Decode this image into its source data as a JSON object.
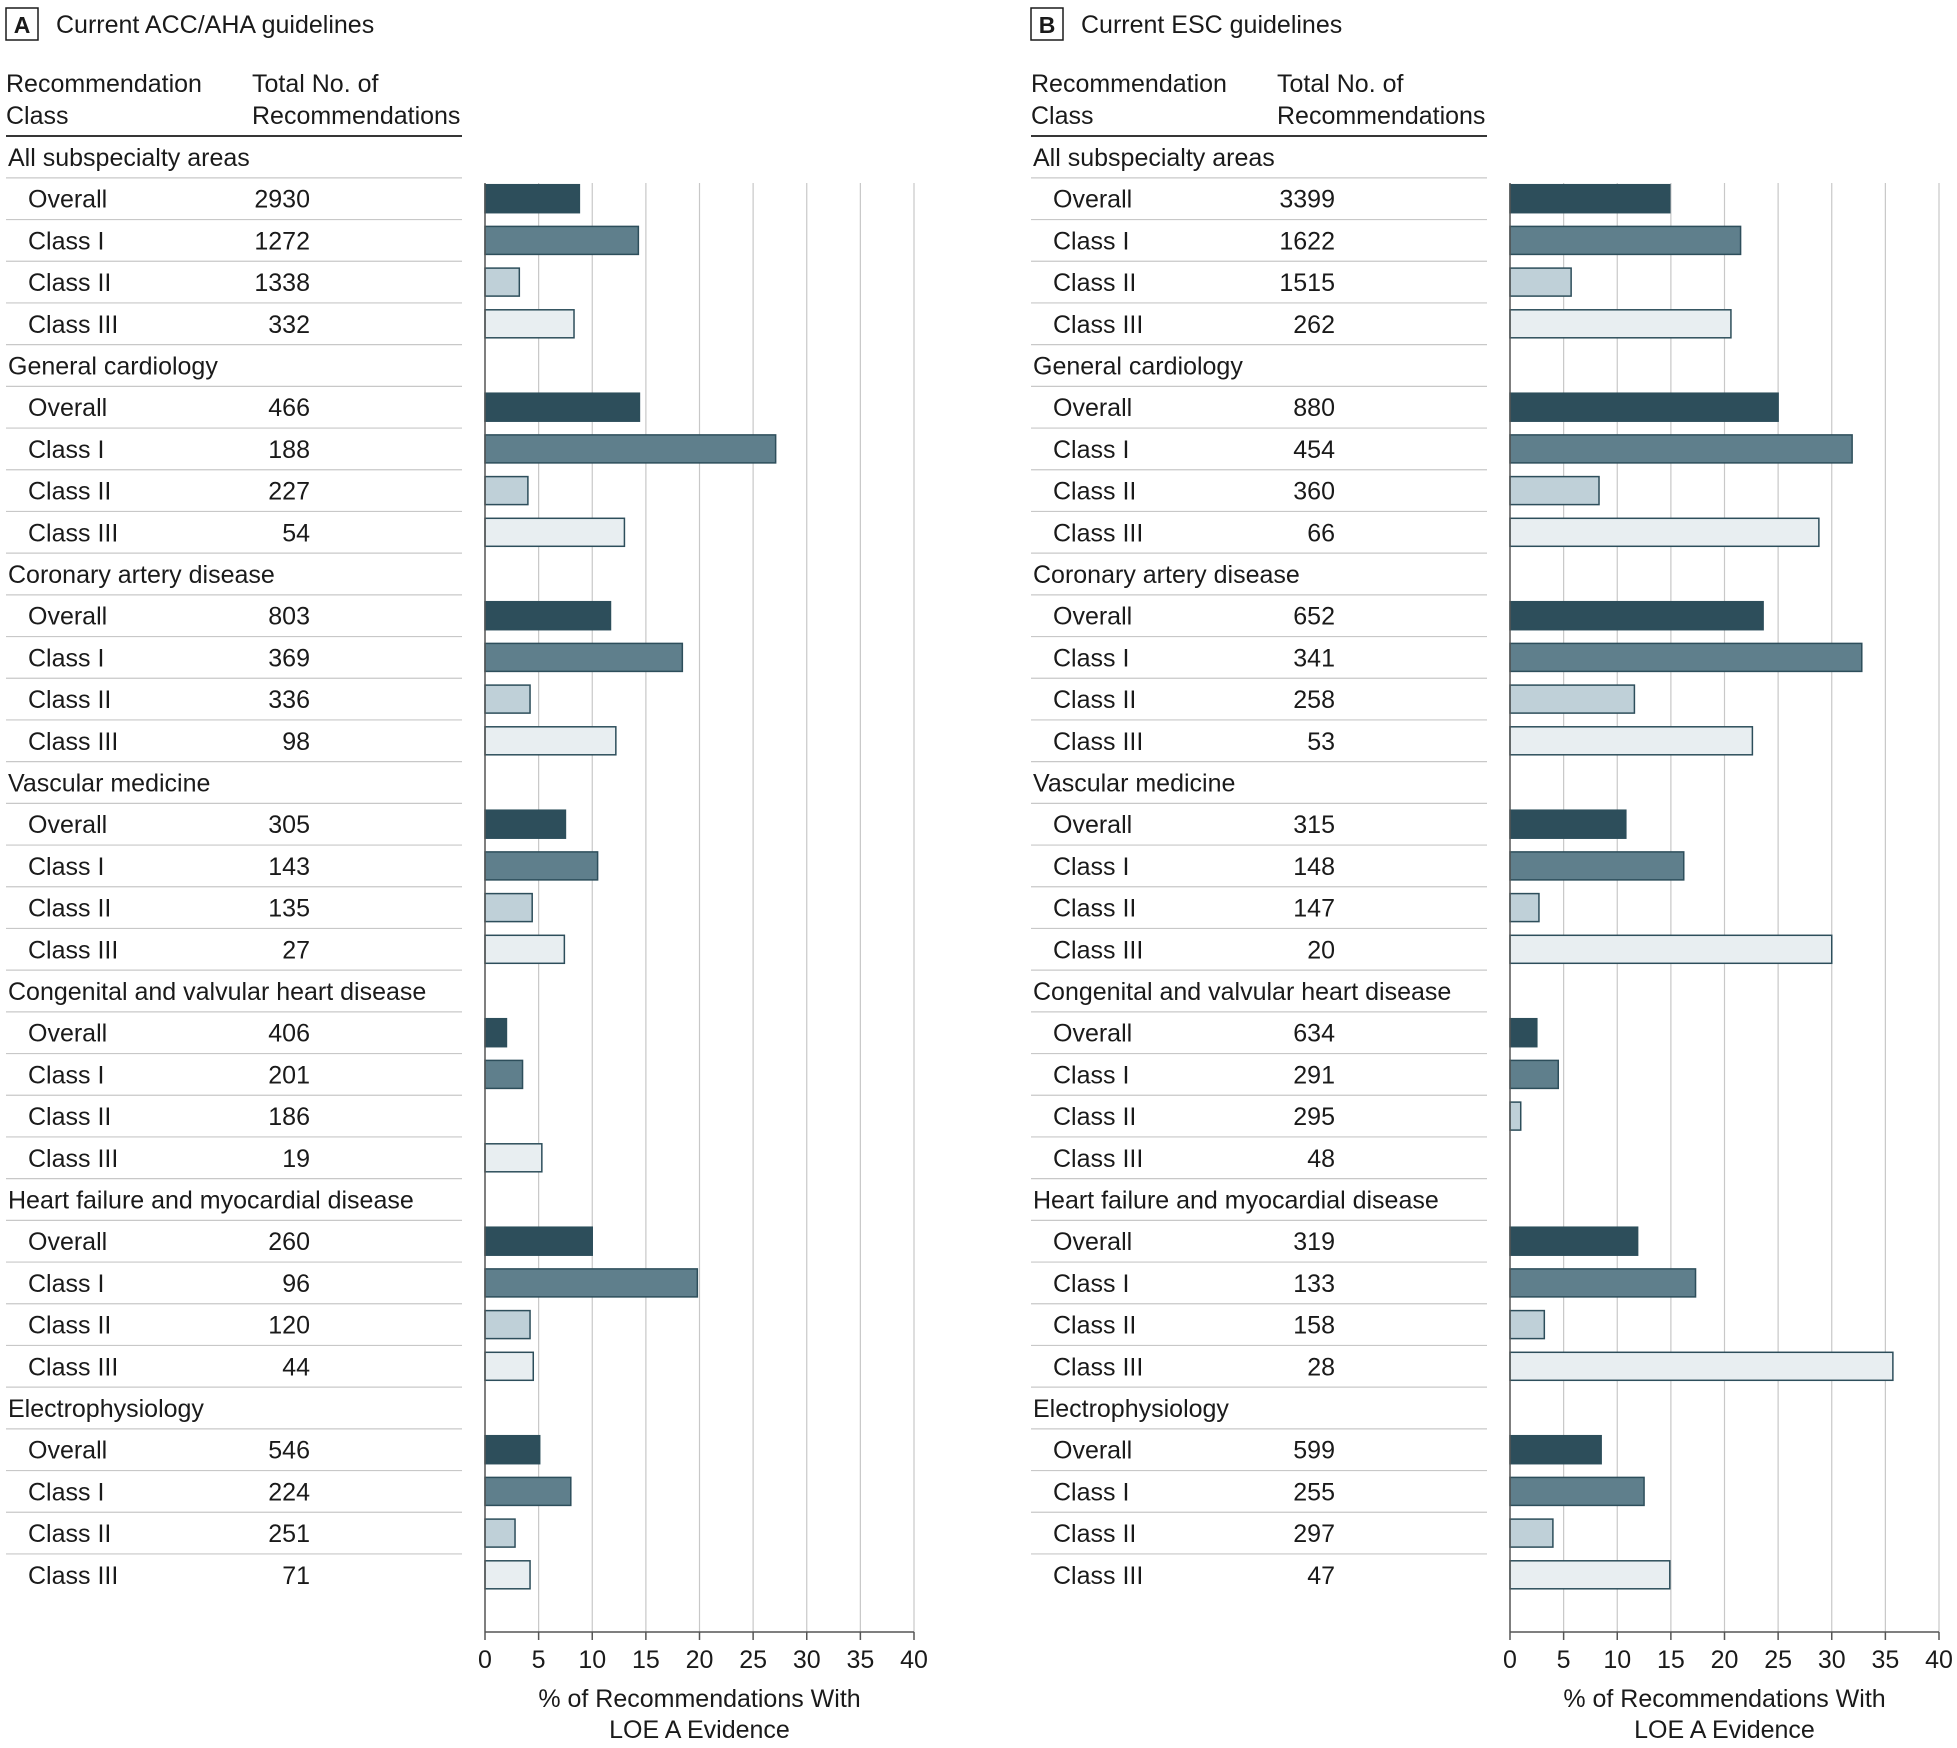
{
  "chart_data": [
    {
      "type": "bar",
      "panel_letter": "A",
      "title": "Current ACC/AHA guidelines",
      "col_headers": {
        "class_line1": "Recommendation",
        "class_line2": "Class",
        "total_line1": "Total No. of",
        "total_line2": "Recommendations"
      },
      "xlabel": [
        "% of Recommendations With",
        "LOE A Evidence"
      ],
      "xlim": [
        0,
        40
      ],
      "xticks": [
        0,
        5,
        10,
        15,
        20,
        25,
        30,
        35,
        40
      ],
      "grid": true,
      "groups": [
        {
          "name": "All subspecialty areas",
          "rows": [
            {
              "label": "Overall",
              "total": "2930",
              "value": 8.8
            },
            {
              "label": "Class I",
              "total": "1272",
              "value": 14.3
            },
            {
              "label": "Class II",
              "total": "1338",
              "value": 3.2
            },
            {
              "label": "Class III",
              "total": "332",
              "value": 8.3
            }
          ]
        },
        {
          "name": "General cardiology",
          "rows": [
            {
              "label": "Overall",
              "total": "466",
              "value": 14.4
            },
            {
              "label": "Class I",
              "total": "188",
              "value": 27.1
            },
            {
              "label": "Class II",
              "total": "227",
              "value": 4.0
            },
            {
              "label": "Class III",
              "total": "54",
              "value": 13.0
            }
          ]
        },
        {
          "name": "Coronary artery disease",
          "rows": [
            {
              "label": "Overall",
              "total": "803",
              "value": 11.7
            },
            {
              "label": "Class I",
              "total": "369",
              "value": 18.4
            },
            {
              "label": "Class II",
              "total": "336",
              "value": 4.2
            },
            {
              "label": "Class III",
              "total": "98",
              "value": 12.2
            }
          ]
        },
        {
          "name": "Vascular medicine",
          "rows": [
            {
              "label": "Overall",
              "total": "305",
              "value": 7.5
            },
            {
              "label": "Class I",
              "total": "143",
              "value": 10.5
            },
            {
              "label": "Class II",
              "total": "135",
              "value": 4.4
            },
            {
              "label": "Class III",
              "total": "27",
              "value": 7.4
            }
          ]
        },
        {
          "name": "Congenital and valvular heart disease",
          "rows": [
            {
              "label": "Overall",
              "total": "406",
              "value": 2.0
            },
            {
              "label": "Class I",
              "total": "201",
              "value": 3.5
            },
            {
              "label": "Class II",
              "total": "186",
              "value": 0
            },
            {
              "label": "Class III",
              "total": "19",
              "value": 5.3
            }
          ]
        },
        {
          "name": "Heart failure and myocardial disease",
          "rows": [
            {
              "label": "Overall",
              "total": "260",
              "value": 10.0
            },
            {
              "label": "Class I",
              "total": "96",
              "value": 19.8
            },
            {
              "label": "Class II",
              "total": "120",
              "value": 4.2
            },
            {
              "label": "Class III",
              "total": "44",
              "value": 4.5
            }
          ]
        },
        {
          "name": "Electrophysiology",
          "rows": [
            {
              "label": "Overall",
              "total": "546",
              "value": 5.1
            },
            {
              "label": "Class I",
              "total": "224",
              "value": 8.0
            },
            {
              "label": "Class II",
              "total": "251",
              "value": 2.8
            },
            {
              "label": "Class III",
              "total": "71",
              "value": 4.2
            }
          ]
        }
      ]
    },
    {
      "type": "bar",
      "panel_letter": "B",
      "title": "Current ESC guidelines",
      "col_headers": {
        "class_line1": "Recommendation",
        "class_line2": "Class",
        "total_line1": "Total No. of",
        "total_line2": "Recommendations"
      },
      "xlabel": [
        "% of Recommendations With",
        "LOE A Evidence"
      ],
      "xlim": [
        0,
        40
      ],
      "xticks": [
        0,
        5,
        10,
        15,
        20,
        25,
        30,
        35,
        40
      ],
      "grid": true,
      "groups": [
        {
          "name": "All subspecialty areas",
          "rows": [
            {
              "label": "Overall",
              "total": "3399",
              "value": 14.9
            },
            {
              "label": "Class I",
              "total": "1622",
              "value": 21.5
            },
            {
              "label": "Class II",
              "total": "1515",
              "value": 5.7
            },
            {
              "label": "Class III",
              "total": "262",
              "value": 20.6
            }
          ]
        },
        {
          "name": "General cardiology",
          "rows": [
            {
              "label": "Overall",
              "total": "880",
              "value": 25.0
            },
            {
              "label": "Class I",
              "total": "454",
              "value": 31.9
            },
            {
              "label": "Class II",
              "total": "360",
              "value": 8.3
            },
            {
              "label": "Class III",
              "total": "66",
              "value": 28.8
            }
          ]
        },
        {
          "name": "Coronary artery disease",
          "rows": [
            {
              "label": "Overall",
              "total": "652",
              "value": 23.6
            },
            {
              "label": "Class I",
              "total": "341",
              "value": 32.8
            },
            {
              "label": "Class II",
              "total": "258",
              "value": 11.6
            },
            {
              "label": "Class III",
              "total": "53",
              "value": 22.6
            }
          ]
        },
        {
          "name": "Vascular medicine",
          "rows": [
            {
              "label": "Overall",
              "total": "315",
              "value": 10.8
            },
            {
              "label": "Class I",
              "total": "148",
              "value": 16.2
            },
            {
              "label": "Class II",
              "total": "147",
              "value": 2.7
            },
            {
              "label": "Class III",
              "total": "20",
              "value": 30.0
            }
          ]
        },
        {
          "name": "Congenital and valvular heart disease",
          "rows": [
            {
              "label": "Overall",
              "total": "634",
              "value": 2.5
            },
            {
              "label": "Class I",
              "total": "291",
              "value": 4.5
            },
            {
              "label": "Class II",
              "total": "295",
              "value": 1.0
            },
            {
              "label": "Class III",
              "total": "48",
              "value": 0
            }
          ]
        },
        {
          "name": "Heart failure and myocardial disease",
          "rows": [
            {
              "label": "Overall",
              "total": "319",
              "value": 11.9
            },
            {
              "label": "Class I",
              "total": "133",
              "value": 17.3
            },
            {
              "label": "Class II",
              "total": "158",
              "value": 3.2
            },
            {
              "label": "Class III",
              "total": "28",
              "value": 35.7
            }
          ]
        },
        {
          "name": "Electrophysiology",
          "rows": [
            {
              "label": "Overall",
              "total": "599",
              "value": 8.5
            },
            {
              "label": "Class I",
              "total": "255",
              "value": 12.5
            },
            {
              "label": "Class II",
              "total": "297",
              "value": 4.0
            },
            {
              "label": "Class III",
              "total": "47",
              "value": 14.9
            }
          ]
        }
      ]
    }
  ],
  "colors": {
    "Overall": "#2d4e5b",
    "Class I": "#5f7f8c",
    "Class II": "#bfd0d8",
    "Class III": "#e8eef1",
    "bar_stroke": "#2d4e5b",
    "grid": "#c8c8c8",
    "row_rule": "#c8c8c8",
    "axis": "#555555"
  }
}
